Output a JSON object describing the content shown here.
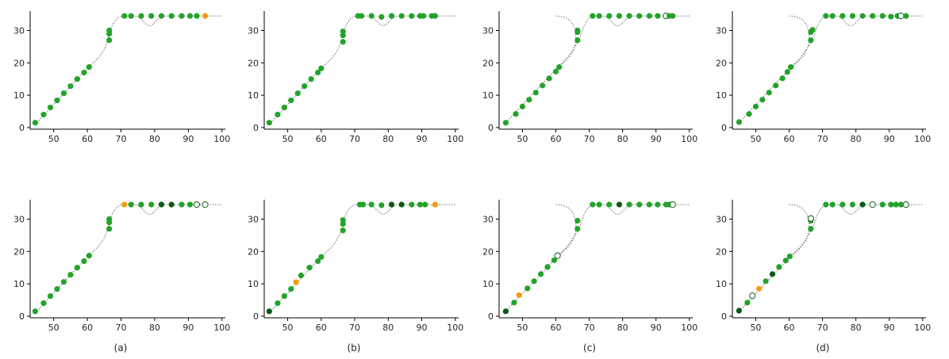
{
  "colors": {
    "point": "#22a32a",
    "point_dark": "#0b5a14",
    "highlight": "#f39c12",
    "hollow_edge": "#0b5a14",
    "line": "#555555",
    "axis": "#000000"
  },
  "charts": [
    {
      "caption": "(a)",
      "start_x": 46,
      "points": [
        [
          44.5,
          1.5,
          "g"
        ],
        [
          47,
          4,
          "g"
        ],
        [
          49,
          6.2,
          "g"
        ],
        [
          51,
          8.4,
          "g"
        ],
        [
          53,
          10.6,
          "g"
        ],
        [
          55,
          12.8,
          "g"
        ],
        [
          57,
          15,
          "g"
        ],
        [
          59,
          17,
          "g"
        ],
        [
          60.5,
          18.7,
          "g"
        ],
        [
          66.5,
          27,
          "g"
        ],
        [
          66.5,
          29,
          "g"
        ],
        [
          66.5,
          30,
          "g"
        ],
        [
          71,
          34.5,
          "g"
        ],
        [
          73,
          34.5,
          "g"
        ],
        [
          76,
          34.5,
          "g"
        ],
        [
          79,
          34.5,
          "g"
        ],
        [
          82,
          34.5,
          "g"
        ],
        [
          85,
          34.5,
          "g"
        ],
        [
          88,
          34.5,
          "g"
        ],
        [
          90.5,
          34.5,
          "g"
        ],
        [
          92.5,
          34.5,
          "g"
        ],
        [
          95,
          34.5,
          "o"
        ]
      ]
    },
    {
      "caption": "(b)",
      "start_x": 46,
      "points": [
        [
          44.5,
          1.5,
          "g"
        ],
        [
          47,
          4,
          "g"
        ],
        [
          49,
          6.2,
          "g"
        ],
        [
          51,
          8.4,
          "g"
        ],
        [
          53,
          10.6,
          "g"
        ],
        [
          55,
          12.8,
          "g"
        ],
        [
          57,
          15,
          "g"
        ],
        [
          59,
          17,
          "g"
        ],
        [
          60,
          18.3,
          "g"
        ],
        [
          66.5,
          26.5,
          "g"
        ],
        [
          66.5,
          28.5,
          "g"
        ],
        [
          66.5,
          29.7,
          "g"
        ],
        [
          71,
          34.5,
          "g"
        ],
        [
          72,
          34.5,
          "g"
        ],
        [
          75,
          34.5,
          "g"
        ],
        [
          78,
          34.2,
          "g"
        ],
        [
          81,
          34.5,
          "g"
        ],
        [
          84,
          34.5,
          "g"
        ],
        [
          87,
          34.5,
          "g"
        ],
        [
          89.5,
          34.5,
          "g"
        ],
        [
          90.5,
          34.5,
          "g"
        ],
        [
          93,
          34.5,
          "g"
        ],
        [
          94,
          34.5,
          "g"
        ]
      ]
    },
    {
      "caption": "(c)",
      "start_x": 60,
      "points": [
        [
          45,
          1.5,
          "g"
        ],
        [
          48,
          4.2,
          "g"
        ],
        [
          50,
          6.5,
          "g"
        ],
        [
          52,
          8.6,
          "g"
        ],
        [
          54,
          10.8,
          "g"
        ],
        [
          56,
          13,
          "g"
        ],
        [
          58,
          15.2,
          "g"
        ],
        [
          60,
          17.3,
          "g"
        ],
        [
          61,
          18.7,
          "g"
        ],
        [
          66.5,
          27,
          "g"
        ],
        [
          66.5,
          29.5,
          "g"
        ],
        [
          66.5,
          30,
          "g"
        ],
        [
          71,
          34.5,
          "g"
        ],
        [
          73,
          34.5,
          "g"
        ],
        [
          76,
          34.5,
          "g"
        ],
        [
          79,
          34.5,
          "g"
        ],
        [
          82,
          34.5,
          "g"
        ],
        [
          85,
          34.5,
          "g"
        ],
        [
          88,
          34.5,
          "g"
        ],
        [
          90.5,
          34.5,
          "g"
        ],
        [
          93,
          34.5,
          "h"
        ],
        [
          94,
          34.5,
          "g"
        ],
        [
          95,
          34.5,
          "g"
        ]
      ]
    },
    {
      "caption": "(d)",
      "start_x": 60,
      "points": [
        [
          45,
          1.7,
          "g"
        ],
        [
          48,
          4.2,
          "g"
        ],
        [
          50,
          6.5,
          "g"
        ],
        [
          52,
          8.6,
          "g"
        ],
        [
          54,
          10.8,
          "g"
        ],
        [
          56,
          13,
          "g"
        ],
        [
          58,
          15.2,
          "g"
        ],
        [
          59.5,
          17.2,
          "g"
        ],
        [
          60.5,
          18.7,
          "g"
        ],
        [
          66.5,
          27,
          "g"
        ],
        [
          66.5,
          29.5,
          "g"
        ],
        [
          67,
          30.2,
          "g"
        ],
        [
          71,
          34.5,
          "g"
        ],
        [
          73,
          34.5,
          "g"
        ],
        [
          76,
          34.5,
          "g"
        ],
        [
          79,
          34.5,
          "g"
        ],
        [
          82,
          34.5,
          "g"
        ],
        [
          85,
          34.5,
          "g"
        ],
        [
          88,
          34.5,
          "g"
        ],
        [
          90.5,
          34.3,
          "g"
        ],
        [
          92.5,
          34.5,
          "g"
        ],
        [
          93.5,
          34.5,
          "h"
        ],
        [
          95,
          34.5,
          "g"
        ]
      ]
    },
    {
      "caption": "",
      "start_x": 46,
      "points": [
        [
          44.5,
          1.5,
          "g"
        ],
        [
          47,
          4,
          "g"
        ],
        [
          49,
          6.2,
          "g"
        ],
        [
          51,
          8.4,
          "g"
        ],
        [
          53,
          10.6,
          "g"
        ],
        [
          55,
          12.8,
          "g"
        ],
        [
          57,
          15,
          "g"
        ],
        [
          59,
          17,
          "g"
        ],
        [
          60.5,
          18.7,
          "g"
        ],
        [
          66.5,
          27,
          "g"
        ],
        [
          66.5,
          29,
          "g"
        ],
        [
          66.5,
          30,
          "g"
        ],
        [
          71,
          34.5,
          "o"
        ],
        [
          73,
          34.5,
          "g"
        ],
        [
          76,
          34.5,
          "g"
        ],
        [
          79,
          34.5,
          "g"
        ],
        [
          82,
          34.5,
          "d"
        ],
        [
          85,
          34.5,
          "d"
        ],
        [
          88,
          34.5,
          "g"
        ],
        [
          90.5,
          34.5,
          "g"
        ],
        [
          92.5,
          34.5,
          "h"
        ],
        [
          95,
          34.5,
          "h"
        ]
      ]
    },
    {
      "caption": "",
      "start_x": 46,
      "points": [
        [
          44.5,
          1.5,
          "d"
        ],
        [
          47,
          4,
          "g"
        ],
        [
          49,
          6.2,
          "g"
        ],
        [
          51,
          8.4,
          "g"
        ],
        [
          52.5,
          10.5,
          "o"
        ],
        [
          54,
          12.6,
          "g"
        ],
        [
          56.5,
          15,
          "g"
        ],
        [
          59,
          17,
          "g"
        ],
        [
          60,
          18.3,
          "g"
        ],
        [
          66.5,
          26.5,
          "g"
        ],
        [
          66.5,
          28.5,
          "g"
        ],
        [
          66.5,
          29.7,
          "g"
        ],
        [
          71.5,
          34.5,
          "g"
        ],
        [
          72.5,
          34.5,
          "g"
        ],
        [
          75,
          34.5,
          "g"
        ],
        [
          78,
          34.3,
          "g"
        ],
        [
          81,
          34.5,
          "d"
        ],
        [
          84,
          34.5,
          "d"
        ],
        [
          87,
          34.5,
          "g"
        ],
        [
          89.5,
          34.5,
          "g"
        ],
        [
          91,
          34.5,
          "g"
        ],
        [
          94,
          34.5,
          "o"
        ]
      ]
    },
    {
      "caption": "",
      "start_x": 60,
      "points": [
        [
          45,
          1.5,
          "d"
        ],
        [
          47.5,
          4.2,
          "g"
        ],
        [
          49,
          6.5,
          "o"
        ],
        [
          51.5,
          8.6,
          "g"
        ],
        [
          53.5,
          10.8,
          "g"
        ],
        [
          55.5,
          13,
          "g"
        ],
        [
          57.5,
          15.2,
          "g"
        ],
        [
          59.5,
          17.3,
          "g"
        ],
        [
          60.5,
          18.7,
          "h"
        ],
        [
          66.5,
          27,
          "g"
        ],
        [
          66.5,
          29.5,
          "g"
        ],
        [
          71,
          34.5,
          "g"
        ],
        [
          73,
          34.5,
          "g"
        ],
        [
          76,
          34.5,
          "g"
        ],
        [
          79,
          34.5,
          "d"
        ],
        [
          82,
          34.5,
          "g"
        ],
        [
          85,
          34.5,
          "g"
        ],
        [
          88,
          34.5,
          "g"
        ],
        [
          90.5,
          34.5,
          "g"
        ],
        [
          93,
          34.5,
          "g"
        ],
        [
          94,
          34.5,
          "g"
        ],
        [
          95,
          34.5,
          "h"
        ]
      ]
    },
    {
      "caption": "",
      "start_x": 60,
      "points": [
        [
          45,
          1.7,
          "d"
        ],
        [
          47.5,
          4.2,
          "g"
        ],
        [
          49,
          6.3,
          "h"
        ],
        [
          51,
          8.5,
          "o"
        ],
        [
          53,
          10.8,
          "g"
        ],
        [
          55,
          13,
          "d"
        ],
        [
          57,
          15.2,
          "g"
        ],
        [
          59,
          17.2,
          "g"
        ],
        [
          60.2,
          18.5,
          "g"
        ],
        [
          66.5,
          27,
          "g"
        ],
        [
          66.5,
          29.5,
          "g"
        ],
        [
          66.5,
          30.2,
          "h"
        ],
        [
          71,
          34.5,
          "g"
        ],
        [
          73,
          34.5,
          "g"
        ],
        [
          76,
          34.5,
          "g"
        ],
        [
          79,
          34.5,
          "g"
        ],
        [
          82,
          34.5,
          "d"
        ],
        [
          85,
          34.5,
          "h"
        ],
        [
          88,
          34.5,
          "g"
        ],
        [
          90.5,
          34.5,
          "g"
        ],
        [
          92,
          34.5,
          "g"
        ],
        [
          93.5,
          34.5,
          "g"
        ],
        [
          95,
          34.5,
          "h"
        ]
      ]
    }
  ],
  "chart_data": [
    {
      "type": "scatter",
      "title": "",
      "xlabel": "",
      "ylabel": "",
      "xlim": [
        43,
        101
      ],
      "ylim": [
        -0.5,
        36
      ],
      "x_ticks": [
        "50",
        "60",
        "70",
        "80",
        "90",
        "100"
      ],
      "y_ticks": [
        "0",
        "10",
        "20",
        "30"
      ],
      "grid": false,
      "caption": "(a)"
    },
    {
      "type": "scatter",
      "title": "",
      "xlabel": "",
      "ylabel": "",
      "xlim": [
        43,
        101
      ],
      "ylim": [
        -0.5,
        36
      ],
      "x_ticks": [
        "50",
        "60",
        "70",
        "80",
        "90",
        "100"
      ],
      "y_ticks": [
        "0",
        "10",
        "20",
        "30"
      ],
      "grid": false,
      "caption": "(b)"
    },
    {
      "type": "scatter",
      "title": "",
      "xlabel": "",
      "ylabel": "",
      "xlim": [
        43,
        101
      ],
      "ylim": [
        -0.5,
        36
      ],
      "x_ticks": [
        "50",
        "60",
        "70",
        "80",
        "90",
        "100"
      ],
      "y_ticks": [
        "0",
        "10",
        "20",
        "30"
      ],
      "grid": false,
      "caption": "(c)"
    },
    {
      "type": "scatter",
      "title": "",
      "xlabel": "",
      "ylabel": "",
      "xlim": [
        43,
        101
      ],
      "ylim": [
        -0.5,
        36
      ],
      "x_ticks": [
        "50",
        "60",
        "70",
        "80",
        "90",
        "100"
      ],
      "y_ticks": [
        "0",
        "10",
        "20",
        "30"
      ],
      "grid": false,
      "caption": "(d)"
    }
  ]
}
